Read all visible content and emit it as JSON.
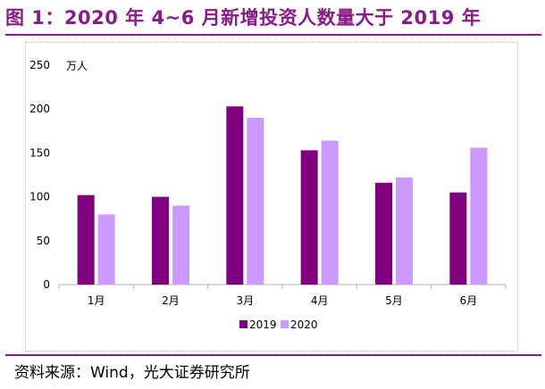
{
  "header": {
    "title": "图 1：2020 年 4~6 月新增投资人数量大于 2019 年"
  },
  "footer": {
    "source": "资料来源：Wind，光大证券研究所"
  },
  "colors": {
    "series_2019": "#800080",
    "series_2020": "#cc99ff",
    "title_color": "#8b1a8b"
  },
  "chart_data": {
    "type": "bar",
    "title": "",
    "unit_label": "万人",
    "categories": [
      "1月",
      "2月",
      "3月",
      "4月",
      "5月",
      "6月"
    ],
    "series": [
      {
        "name": "2019",
        "values": [
          102,
          100,
          203,
          153,
          116,
          105
        ]
      },
      {
        "name": "2020",
        "values": [
          80,
          90,
          190,
          164,
          122,
          156
        ]
      }
    ],
    "ylim": [
      0,
      250
    ],
    "yticks": [
      0,
      50,
      100,
      150,
      200,
      250
    ],
    "legend_position": "bottom",
    "grid": false
  }
}
